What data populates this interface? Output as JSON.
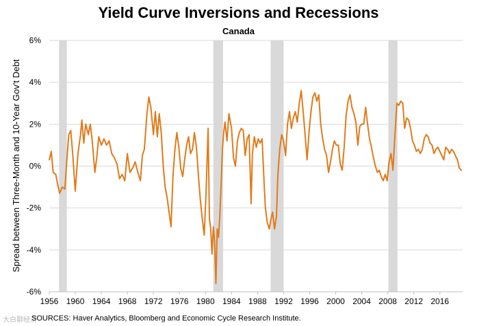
{
  "chart_data": {
    "type": "line",
    "title": "Yield Curve Inversions and Recessions",
    "subtitle": "Canada",
    "ylabel": "Spread between Three-Month and 10-Year Gov't Debt",
    "xlabel": "",
    "xlim": [
      1956,
      2019.5
    ],
    "ylim": [
      -6,
      6
    ],
    "x_ticks": [
      1956,
      1960,
      1964,
      1968,
      1972,
      1976,
      1980,
      1984,
      1988,
      1992,
      1996,
      2000,
      2004,
      2008,
      2012,
      2016
    ],
    "x_tick_labels": [
      "1956",
      "1960",
      "1964",
      "1968",
      "1972",
      "1976",
      "1980",
      "1984",
      "1988",
      "1992",
      "1996",
      "2000",
      "2004",
      "2008",
      "2012",
      "2016"
    ],
    "y_ticks": [
      -6,
      -4,
      -2,
      0,
      2,
      4,
      6
    ],
    "y_tick_labels": [
      "-6%",
      "-4%",
      "-2%",
      "0%",
      "2%",
      "4%",
      "6%"
    ],
    "recessions": [
      [
        1957.5,
        1958.7
      ],
      [
        1981.2,
        1982.7
      ],
      [
        1990.0,
        1992.0
      ],
      [
        2008.1,
        2009.5
      ]
    ],
    "series": [
      {
        "name": "Spread",
        "color": "#E07B1A",
        "points": [
          [
            1956.0,
            0.3
          ],
          [
            1956.3,
            0.7
          ],
          [
            1956.6,
            -0.3
          ],
          [
            1957.0,
            -0.4
          ],
          [
            1957.3,
            -0.9
          ],
          [
            1957.6,
            -1.3
          ],
          [
            1958.0,
            -1.0
          ],
          [
            1958.4,
            -1.1
          ],
          [
            1958.7,
            0.3
          ],
          [
            1959.0,
            1.5
          ],
          [
            1959.3,
            1.7
          ],
          [
            1959.6,
            0.6
          ],
          [
            1960.0,
            -1.2
          ],
          [
            1960.4,
            0.6
          ],
          [
            1960.8,
            1.5
          ],
          [
            1961.0,
            2.2
          ],
          [
            1961.3,
            1.1
          ],
          [
            1961.6,
            2.0
          ],
          [
            1962.0,
            1.5
          ],
          [
            1962.3,
            2.0
          ],
          [
            1962.6,
            1.2
          ],
          [
            1963.0,
            -0.3
          ],
          [
            1963.3,
            0.4
          ],
          [
            1963.6,
            1.4
          ],
          [
            1964.0,
            1.0
          ],
          [
            1964.4,
            1.3
          ],
          [
            1964.8,
            1.0
          ],
          [
            1965.2,
            1.2
          ],
          [
            1965.6,
            0.6
          ],
          [
            1966.0,
            0.4
          ],
          [
            1966.4,
            0.1
          ],
          [
            1966.8,
            -0.6
          ],
          [
            1967.2,
            -0.4
          ],
          [
            1967.6,
            -0.7
          ],
          [
            1968.0,
            0.6
          ],
          [
            1968.4,
            -0.3
          ],
          [
            1968.8,
            -0.1
          ],
          [
            1969.2,
            0.2
          ],
          [
            1969.6,
            -0.3
          ],
          [
            1970.0,
            -0.7
          ],
          [
            1970.3,
            0.5
          ],
          [
            1970.6,
            0.8
          ],
          [
            1971.0,
            2.5
          ],
          [
            1971.3,
            3.3
          ],
          [
            1971.6,
            2.8
          ],
          [
            1972.0,
            1.5
          ],
          [
            1972.3,
            2.6
          ],
          [
            1972.6,
            1.4
          ],
          [
            1972.9,
            2.5
          ],
          [
            1973.2,
            1.6
          ],
          [
            1973.5,
            0.0
          ],
          [
            1973.8,
            -1.0
          ],
          [
            1974.1,
            -1.5
          ],
          [
            1974.4,
            -2.2
          ],
          [
            1974.7,
            -2.9
          ],
          [
            1975.0,
            -0.5
          ],
          [
            1975.3,
            0.8
          ],
          [
            1975.6,
            1.6
          ],
          [
            1975.9,
            0.9
          ],
          [
            1976.2,
            -0.1
          ],
          [
            1976.5,
            -0.5
          ],
          [
            1976.8,
            0.3
          ],
          [
            1977.1,
            1.0
          ],
          [
            1977.4,
            1.4
          ],
          [
            1977.7,
            0.6
          ],
          [
            1978.0,
            0.8
          ],
          [
            1978.3,
            1.6
          ],
          [
            1978.6,
            0.9
          ],
          [
            1978.9,
            -0.4
          ],
          [
            1979.2,
            -1.6
          ],
          [
            1979.5,
            -2.5
          ],
          [
            1979.8,
            -3.3
          ],
          [
            1980.1,
            -1.2
          ],
          [
            1980.4,
            1.8
          ],
          [
            1980.6,
            -2.5
          ],
          [
            1980.8,
            -3.0
          ],
          [
            1981.0,
            -4.2
          ],
          [
            1981.2,
            -2.9
          ],
          [
            1981.4,
            -3.6
          ],
          [
            1981.6,
            -5.6
          ],
          [
            1981.8,
            -3.0
          ],
          [
            1982.0,
            -3.4
          ],
          [
            1982.2,
            -2.4
          ],
          [
            1982.4,
            -0.9
          ],
          [
            1982.6,
            0.8
          ],
          [
            1982.8,
            1.6
          ],
          [
            1983.0,
            2.1
          ],
          [
            1983.3,
            1.2
          ],
          [
            1983.6,
            2.5
          ],
          [
            1984.0,
            1.8
          ],
          [
            1984.3,
            0.4
          ],
          [
            1984.6,
            0.0
          ],
          [
            1984.9,
            1.2
          ],
          [
            1985.2,
            1.6
          ],
          [
            1985.5,
            1.8
          ],
          [
            1985.8,
            1.7
          ],
          [
            1986.1,
            0.5
          ],
          [
            1986.4,
            1.3
          ],
          [
            1986.7,
            1.5
          ],
          [
            1987.0,
            -1.8
          ],
          [
            1987.2,
            0.6
          ],
          [
            1987.5,
            1.4
          ],
          [
            1987.8,
            0.9
          ],
          [
            1988.1,
            1.3
          ],
          [
            1988.4,
            1.1
          ],
          [
            1988.7,
            1.3
          ],
          [
            1989.0,
            -0.8
          ],
          [
            1989.2,
            -2.0
          ],
          [
            1989.5,
            -2.7
          ],
          [
            1989.8,
            -3.0
          ],
          [
            1990.0,
            -2.6
          ],
          [
            1990.3,
            -2.2
          ],
          [
            1990.6,
            -3.0
          ],
          [
            1990.9,
            -2.4
          ],
          [
            1991.1,
            -0.5
          ],
          [
            1991.4,
            0.8
          ],
          [
            1991.7,
            1.5
          ],
          [
            1992.0,
            1.2
          ],
          [
            1992.3,
            0.5
          ],
          [
            1992.6,
            2.0
          ],
          [
            1992.9,
            2.6
          ],
          [
            1993.2,
            1.8
          ],
          [
            1993.5,
            2.3
          ],
          [
            1993.8,
            2.6
          ],
          [
            1994.1,
            2.1
          ],
          [
            1994.4,
            3.0
          ],
          [
            1994.7,
            3.6
          ],
          [
            1995.0,
            2.6
          ],
          [
            1995.3,
            1.5
          ],
          [
            1995.6,
            0.3
          ],
          [
            1995.9,
            1.6
          ],
          [
            1996.2,
            2.6
          ],
          [
            1996.5,
            3.3
          ],
          [
            1996.8,
            3.5
          ],
          [
            1997.1,
            3.1
          ],
          [
            1997.4,
            3.4
          ],
          [
            1997.7,
            2.0
          ],
          [
            1998.0,
            1.3
          ],
          [
            1998.3,
            0.8
          ],
          [
            1998.6,
            0.5
          ],
          [
            1998.9,
            -0.3
          ],
          [
            1999.2,
            0.2
          ],
          [
            1999.5,
            0.8
          ],
          [
            1999.8,
            1.2
          ],
          [
            2000.1,
            1.0
          ],
          [
            2000.4,
            1.0
          ],
          [
            2000.7,
            0.1
          ],
          [
            2001.0,
            -0.2
          ],
          [
            2001.3,
            0.9
          ],
          [
            2001.6,
            2.4
          ],
          [
            2001.9,
            3.1
          ],
          [
            2002.2,
            3.4
          ],
          [
            2002.5,
            2.8
          ],
          [
            2002.8,
            2.5
          ],
          [
            2003.1,
            2.1
          ],
          [
            2003.4,
            1.0
          ],
          [
            2003.7,
            1.9
          ],
          [
            2004.0,
            2.0
          ],
          [
            2004.3,
            2.0
          ],
          [
            2004.6,
            2.8
          ],
          [
            2004.9,
            2.0
          ],
          [
            2005.2,
            1.3
          ],
          [
            2005.5,
            0.9
          ],
          [
            2005.8,
            0.4
          ],
          [
            2006.1,
            0.0
          ],
          [
            2006.4,
            -0.3
          ],
          [
            2006.7,
            -0.2
          ],
          [
            2007.0,
            -0.5
          ],
          [
            2007.3,
            -0.7
          ],
          [
            2007.6,
            -0.4
          ],
          [
            2007.9,
            -0.7
          ],
          [
            2008.2,
            0.2
          ],
          [
            2008.5,
            0.6
          ],
          [
            2008.8,
            -0.2
          ],
          [
            2009.1,
            1.5
          ],
          [
            2009.4,
            3.0
          ],
          [
            2009.7,
            2.9
          ],
          [
            2010.0,
            3.1
          ],
          [
            2010.3,
            3.0
          ],
          [
            2010.6,
            1.8
          ],
          [
            2010.9,
            2.3
          ],
          [
            2011.2,
            2.2
          ],
          [
            2011.5,
            1.8
          ],
          [
            2011.8,
            1.2
          ],
          [
            2012.1,
            1.0
          ],
          [
            2012.4,
            0.7
          ],
          [
            2012.7,
            0.8
          ],
          [
            2013.0,
            0.6
          ],
          [
            2013.3,
            0.8
          ],
          [
            2013.6,
            1.3
          ],
          [
            2013.9,
            1.5
          ],
          [
            2014.2,
            1.4
          ],
          [
            2014.5,
            1.1
          ],
          [
            2014.8,
            1.0
          ],
          [
            2015.1,
            0.6
          ],
          [
            2015.4,
            0.8
          ],
          [
            2015.7,
            0.9
          ],
          [
            2016.0,
            0.7
          ],
          [
            2016.3,
            0.5
          ],
          [
            2016.6,
            0.3
          ],
          [
            2016.9,
            0.9
          ],
          [
            2017.2,
            0.8
          ],
          [
            2017.5,
            0.6
          ],
          [
            2017.8,
            0.8
          ],
          [
            2018.1,
            0.7
          ],
          [
            2018.4,
            0.5
          ],
          [
            2018.7,
            0.3
          ],
          [
            2019.0,
            -0.1
          ],
          [
            2019.3,
            -0.2
          ]
        ]
      }
    ]
  },
  "source_note": "SOURCES: Haver Analytics, Bloomberg and Economic Cycle Research Institute.",
  "watermark": "大白聊经济"
}
